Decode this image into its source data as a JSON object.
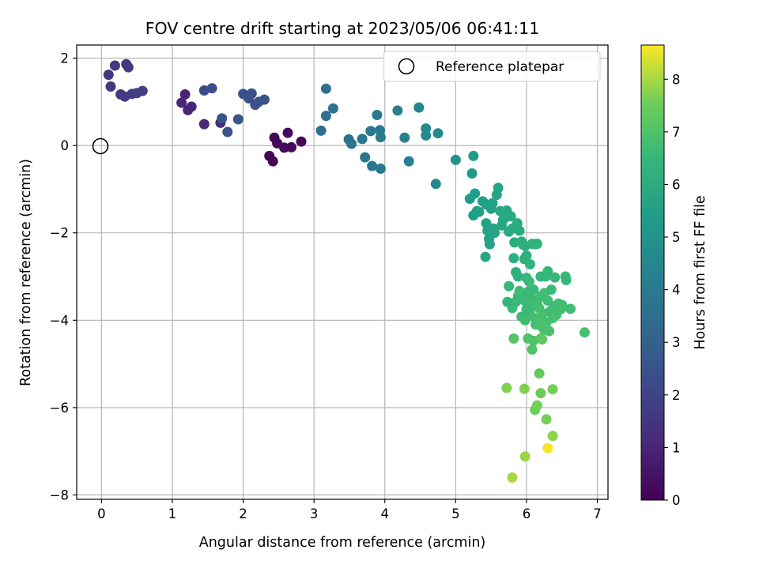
{
  "chart_data": {
    "type": "scatter",
    "title": "FOV centre drift starting at 2023/05/06 06:41:11",
    "xlabel": "Angular distance from reference (arcmin)",
    "ylabel": "Rotation from reference (arcmin)",
    "xlim": [
      -0.35,
      7.15
    ],
    "ylim": [
      -8.1,
      2.3
    ],
    "xticks": [
      0,
      1,
      2,
      3,
      4,
      5,
      6,
      7
    ],
    "yticks": [
      -8,
      -6,
      -4,
      -2,
      0,
      2
    ],
    "grid": true,
    "legend": {
      "position": "top-right",
      "entries": [
        "Reference platepar"
      ]
    },
    "reference_point": {
      "x": 0,
      "y": 0,
      "label": "Reference platepar"
    },
    "colorbar": {
      "label": "Hours from first FF file",
      "colormap": "viridis",
      "range": [
        0,
        8.65
      ],
      "ticks": [
        0,
        1,
        2,
        3,
        4,
        5,
        6,
        7,
        8
      ]
    },
    "points": [
      [
        2.37,
        -0.24,
        0.1
      ],
      [
        2.42,
        -0.36,
        0.1
      ],
      [
        2.44,
        0.18,
        0.2
      ],
      [
        2.48,
        0.05,
        0.2
      ],
      [
        2.58,
        -0.05,
        0.2
      ],
      [
        2.63,
        0.29,
        0.2
      ],
      [
        2.68,
        -0.04,
        0.2
      ],
      [
        2.82,
        0.09,
        0.2
      ],
      [
        1.13,
        0.98,
        1.0
      ],
      [
        1.18,
        1.17,
        1.0
      ],
      [
        1.22,
        0.81,
        1.0
      ],
      [
        1.27,
        0.89,
        1.0
      ],
      [
        1.45,
        0.49,
        1.1
      ],
      [
        1.68,
        0.52,
        1.1
      ],
      [
        0.13,
        1.35,
        1.6
      ],
      [
        0.1,
        1.62,
        1.6
      ],
      [
        0.19,
        1.83,
        1.6
      ],
      [
        0.27,
        1.17,
        1.7
      ],
      [
        0.33,
        1.12,
        1.7
      ],
      [
        0.35,
        1.86,
        1.7
      ],
      [
        0.38,
        1.79,
        1.7
      ],
      [
        0.43,
        1.18,
        1.7
      ],
      [
        0.5,
        1.2,
        1.8
      ],
      [
        0.58,
        1.25,
        1.8
      ],
      [
        1.45,
        1.26,
        2.2
      ],
      [
        1.56,
        1.31,
        2.3
      ],
      [
        1.7,
        0.62,
        2.5
      ],
      [
        1.78,
        0.31,
        2.5
      ],
      [
        1.93,
        0.6,
        2.6
      ],
      [
        2.0,
        1.18,
        2.4
      ],
      [
        2.08,
        1.08,
        2.4
      ],
      [
        2.12,
        1.19,
        2.4
      ],
      [
        2.17,
        0.93,
        2.5
      ],
      [
        2.22,
        1.0,
        2.5
      ],
      [
        2.3,
        1.05,
        2.5
      ],
      [
        3.1,
        0.34,
        3.6
      ],
      [
        3.17,
        0.68,
        3.6
      ],
      [
        3.17,
        1.3,
        3.6
      ],
      [
        3.27,
        0.85,
        3.7
      ],
      [
        3.49,
        0.14,
        3.7
      ],
      [
        3.53,
        0.04,
        3.8
      ],
      [
        3.68,
        0.15,
        3.8
      ],
      [
        3.72,
        -0.27,
        3.9
      ],
      [
        3.8,
        0.33,
        3.9
      ],
      [
        3.82,
        -0.47,
        3.9
      ],
      [
        3.89,
        0.7,
        4.0
      ],
      [
        3.93,
        0.35,
        4.0
      ],
      [
        3.94,
        0.19,
        4.0
      ],
      [
        3.94,
        -0.53,
        4.0
      ],
      [
        4.18,
        0.8,
        4.2
      ],
      [
        4.28,
        0.18,
        4.3
      ],
      [
        4.34,
        -0.36,
        4.3
      ],
      [
        4.48,
        0.87,
        4.4
      ],
      [
        4.58,
        0.39,
        4.6
      ],
      [
        4.58,
        0.23,
        4.6
      ],
      [
        4.72,
        -0.88,
        4.6
      ],
      [
        4.75,
        0.28,
        4.7
      ],
      [
        5.0,
        -0.33,
        5.0
      ],
      [
        5.25,
        -0.24,
        5.3
      ],
      [
        5.23,
        -0.64,
        5.3
      ],
      [
        5.2,
        -1.22,
        5.3
      ],
      [
        5.27,
        -1.1,
        5.4
      ],
      [
        5.25,
        -1.6,
        5.4
      ],
      [
        5.3,
        -1.5,
        5.4
      ],
      [
        5.33,
        -1.52,
        5.5
      ],
      [
        5.38,
        -1.28,
        5.5
      ],
      [
        5.43,
        -1.35,
        5.5
      ],
      [
        5.43,
        -1.78,
        5.6
      ],
      [
        5.45,
        -1.95,
        5.6
      ],
      [
        5.47,
        -2.14,
        5.6
      ],
      [
        5.48,
        -2.26,
        5.6
      ],
      [
        5.5,
        -1.45,
        5.6
      ],
      [
        5.52,
        -1.32,
        5.6
      ],
      [
        5.53,
        -1.9,
        5.7
      ],
      [
        5.55,
        -2.0,
        5.7
      ],
      [
        5.58,
        -1.13,
        5.7
      ],
      [
        5.6,
        -0.97,
        5.7
      ],
      [
        5.63,
        -1.5,
        5.8
      ],
      [
        5.65,
        -1.83,
        5.8
      ],
      [
        5.67,
        -1.7,
        5.8
      ],
      [
        5.7,
        -1.65,
        5.8
      ],
      [
        5.72,
        -1.49,
        5.9
      ],
      [
        5.75,
        -1.97,
        5.9
      ],
      [
        5.78,
        -1.62,
        5.9
      ],
      [
        5.8,
        -1.9,
        6.0
      ],
      [
        5.83,
        -2.22,
        6.0
      ],
      [
        5.87,
        -1.78,
        6.0
      ],
      [
        5.9,
        -1.95,
        6.0
      ],
      [
        5.93,
        -2.2,
        6.1
      ],
      [
        5.95,
        -2.27,
        6.1
      ],
      [
        5.98,
        -2.3,
        6.1
      ],
      [
        5.42,
        -2.55,
        5.8
      ],
      [
        5.82,
        -2.58,
        6.1
      ],
      [
        5.85,
        -2.9,
        6.2
      ],
      [
        5.88,
        -3.0,
        6.2
      ],
      [
        5.97,
        -2.6,
        6.2
      ],
      [
        6.0,
        -2.52,
        6.2
      ],
      [
        6.05,
        -2.72,
        6.3
      ],
      [
        6.08,
        -2.25,
        6.3
      ],
      [
        6.12,
        -2.26,
        6.3
      ],
      [
        6.15,
        -2.25,
        6.3
      ],
      [
        5.75,
        -3.22,
        6.5
      ],
      [
        5.78,
        -3.62,
        6.6
      ],
      [
        5.8,
        -3.72,
        6.6
      ],
      [
        5.85,
        -3.58,
        6.6
      ],
      [
        5.88,
        -3.45,
        6.6
      ],
      [
        5.9,
        -3.33,
        6.7
      ],
      [
        5.93,
        -3.92,
        6.6
      ],
      [
        5.95,
        -3.48,
        6.6
      ],
      [
        5.97,
        -3.55,
        6.6
      ],
      [
        5.98,
        -4.0,
        6.7
      ],
      [
        6.0,
        -3.03,
        6.5
      ],
      [
        6.02,
        -3.35,
        6.6
      ],
      [
        6.04,
        -3.12,
        6.6
      ],
      [
        6.05,
        -3.86,
        6.7
      ],
      [
        6.07,
        -3.5,
        6.6
      ],
      [
        6.08,
        -3.68,
        6.7
      ],
      [
        6.1,
        -3.3,
        6.6
      ],
      [
        6.12,
        -3.95,
        6.8
      ],
      [
        6.13,
        -4.1,
        6.8
      ],
      [
        6.15,
        -3.6,
        6.7
      ],
      [
        6.17,
        -4.05,
        6.8
      ],
      [
        6.18,
        -3.73,
        6.8
      ],
      [
        6.2,
        -3.45,
        6.7
      ],
      [
        6.2,
        -3.0,
        6.5
      ],
      [
        6.22,
        -4.15,
        6.8
      ],
      [
        6.23,
        -3.85,
        6.8
      ],
      [
        6.25,
        -3.38,
        6.7
      ],
      [
        6.27,
        -3.0,
        6.5
      ],
      [
        6.28,
        -4.05,
        6.8
      ],
      [
        6.3,
        -3.55,
        6.7
      ],
      [
        6.3,
        -2.88,
        6.5
      ],
      [
        6.32,
        -4.25,
        6.9
      ],
      [
        6.33,
        -3.8,
        6.8
      ],
      [
        6.35,
        -3.3,
        6.6
      ],
      [
        6.37,
        -3.95,
        6.8
      ],
      [
        6.38,
        -3.68,
        6.7
      ],
      [
        6.4,
        -3.02,
        6.5
      ],
      [
        6.42,
        -3.88,
        6.8
      ],
      [
        6.45,
        -3.62,
        6.7
      ],
      [
        6.48,
        -3.75,
        6.7
      ],
      [
        6.5,
        -3.65,
        6.7
      ],
      [
        6.55,
        -3.0,
        6.5
      ],
      [
        6.56,
        -3.08,
        6.5
      ],
      [
        6.62,
        -3.74,
        6.7
      ],
      [
        6.82,
        -4.28,
        6.8
      ],
      [
        6.1,
        -4.47,
        7.0
      ],
      [
        6.08,
        -4.67,
        7.0
      ],
      [
        6.2,
        -4.42,
        7.1
      ],
      [
        6.22,
        -4.44,
        7.3
      ],
      [
        6.02,
        -4.42,
        7.0
      ],
      [
        5.73,
        -3.58,
        6.4
      ],
      [
        5.82,
        -4.42,
        7.1
      ],
      [
        6.22,
        -4.1,
        6.9
      ],
      [
        6.25,
        -4.22,
        6.9
      ],
      [
        6.0,
        -3.75,
        6.6
      ],
      [
        6.18,
        -5.22,
        7.4
      ],
      [
        6.2,
        -5.67,
        7.5
      ],
      [
        6.12,
        -6.05,
        7.5
      ],
      [
        6.15,
        -5.95,
        7.6
      ],
      [
        6.28,
        -6.27,
        7.6
      ],
      [
        6.37,
        -5.58,
        7.6
      ],
      [
        5.72,
        -5.55,
        7.7
      ],
      [
        5.97,
        -5.57,
        7.7
      ],
      [
        6.37,
        -6.65,
        7.8
      ],
      [
        5.98,
        -7.12,
        7.9
      ],
      [
        5.8,
        -7.6,
        8.0
      ],
      [
        6.3,
        -6.93,
        8.6
      ]
    ]
  }
}
